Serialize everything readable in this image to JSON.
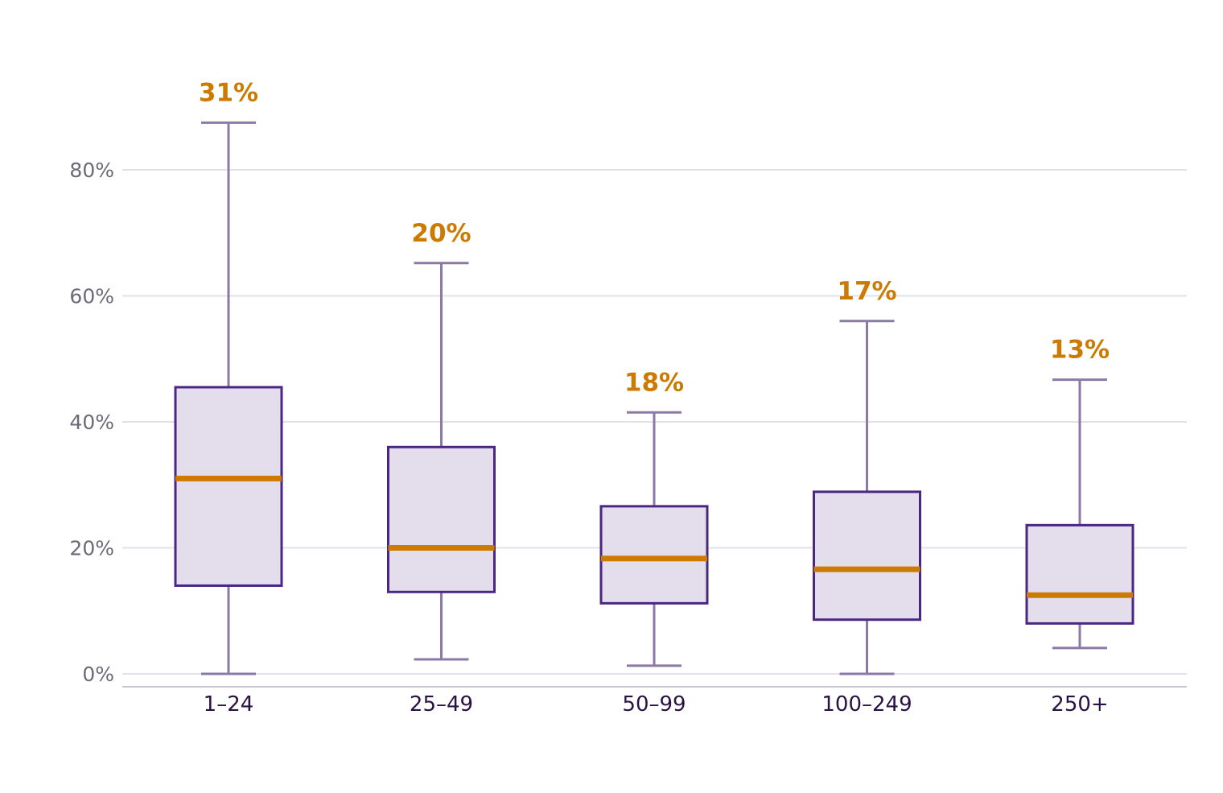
{
  "chart_data": {
    "type": "boxplot",
    "title": "",
    "xlabel": "",
    "ylabel": "",
    "ylim": [
      0,
      90
    ],
    "yticks": [
      0,
      20,
      40,
      60,
      80
    ],
    "ytick_labels": [
      "0%",
      "20%",
      "40%",
      "60%",
      "80%"
    ],
    "grid": true,
    "legend": "none",
    "categories": [
      "1–24",
      "25–49",
      "50–99",
      "100–249",
      "250+"
    ],
    "boxes": [
      {
        "category": "1–24",
        "min": 0,
        "q1": 14,
        "median": 31,
        "q3": 45.5,
        "max": 87.5,
        "median_label": "31%"
      },
      {
        "category": "25–49",
        "min": 2.3,
        "q1": 13,
        "median": 20,
        "q3": 36,
        "max": 65.2,
        "median_label": "20%"
      },
      {
        "category": "50–99",
        "min": 1.3,
        "q1": 11.2,
        "median": 18.3,
        "q3": 26.6,
        "max": 41.5,
        "median_label": "18%"
      },
      {
        "category": "100–249",
        "min": 0,
        "q1": 8.6,
        "median": 16.6,
        "q3": 28.9,
        "max": 56,
        "median_label": "17%"
      },
      {
        "category": "250+",
        "min": 4.1,
        "q1": 8,
        "median": 12.5,
        "q3": 23.6,
        "max": 46.7,
        "median_label": "13%"
      }
    ],
    "colors": {
      "box_fill": "#e3ddec",
      "box_stroke": "#4b2682",
      "whisker": "#8b7aa8",
      "median": "#cc7a00",
      "grid": "#e3e0ea"
    }
  }
}
